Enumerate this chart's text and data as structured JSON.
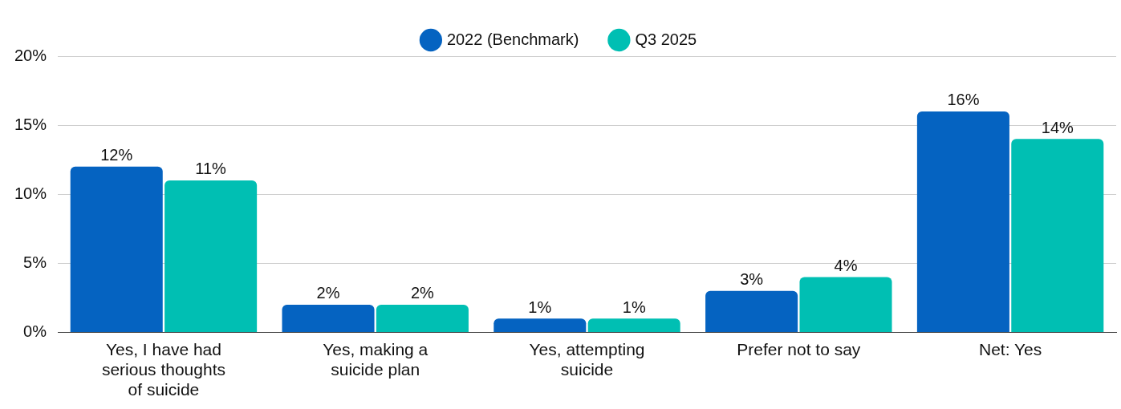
{
  "chart_data": {
    "type": "bar",
    "categories": [
      "Yes, I have had serious thoughts of suicide",
      "Yes, making a suicide plan",
      "Yes, attempting suicide",
      "Prefer not to say",
      "Net: Yes"
    ],
    "series": [
      {
        "name": "2022 (Benchmark)",
        "color": "#0563c1",
        "values": [
          12,
          2,
          1,
          3,
          16
        ],
        "value_labels": [
          "12%",
          "2%",
          "1%",
          "3%",
          "16%"
        ]
      },
      {
        "name": "Q3 2025",
        "color": "#00bfb3",
        "values": [
          11,
          2,
          1,
          4,
          14
        ],
        "value_labels": [
          "11%",
          "2%",
          "1%",
          "4%",
          "14%"
        ]
      }
    ],
    "ylim": [
      0,
      20
    ],
    "yticks": [
      {
        "value": 0,
        "label": "0%"
      },
      {
        "value": 5,
        "label": "5%"
      },
      {
        "value": 10,
        "label": "10%"
      },
      {
        "value": 15,
        "label": "15%"
      },
      {
        "value": 20,
        "label": "20%"
      }
    ],
    "grid": "y",
    "legend": "top"
  }
}
